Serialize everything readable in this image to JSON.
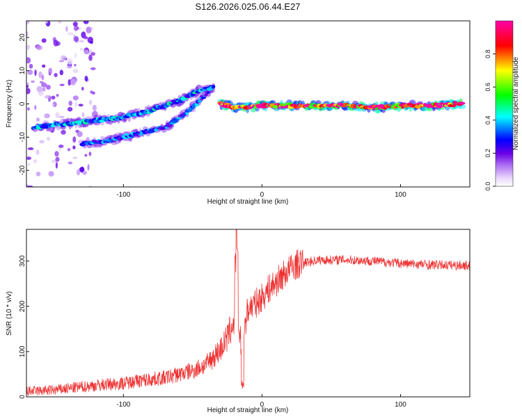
{
  "chart_data": [
    {
      "type": "heatmap",
      "title": "S126.2026.025.06.44.E27",
      "xlabel": "Height of straight line (km)",
      "ylabel": "Frequency (Hz)",
      "xlim": [
        -170,
        150
      ],
      "ylim": [
        -25,
        25
      ],
      "xticks": [
        -100,
        0,
        100
      ],
      "yticks": [
        -20,
        -10,
        0,
        10,
        20
      ],
      "colorbar": {
        "label": "Normalized spectral amplitude",
        "range": [
          0,
          1
        ],
        "ticks": [
          "0.0",
          "0.2",
          "0.4",
          "0.6",
          "0.8"
        ]
      },
      "color_stops": [
        "#ffffff",
        "#e9d7fb",
        "#a35cf2",
        "#6900e6",
        "#0000ff",
        "#00ffff",
        "#00ff00",
        "#ffff00",
        "#ff0000",
        "#ff00aa"
      ],
      "features": [
        {
          "name": "low-altitude-noise",
          "x_range": [
            -170,
            -120
          ],
          "y_range": [
            -25,
            25
          ],
          "amplitude": 0.15
        },
        {
          "name": "rising-branch-a",
          "x": [
            -165,
            -140,
            -120,
            -100,
            -80,
            -60,
            -45,
            -35
          ],
          "y": [
            -7,
            -6,
            -5,
            -4,
            -2,
            1,
            4,
            5
          ],
          "amplitude": 0.35
        },
        {
          "name": "rising-branch-b",
          "x": [
            -130,
            -110,
            -90,
            -70,
            -55,
            -45,
            -38
          ],
          "y": [
            -12,
            -11,
            -9,
            -7,
            -3,
            1,
            4
          ],
          "amplitude": 0.3
        },
        {
          "name": "high-altitude-line",
          "x": [
            -30,
            -20,
            -10,
            0,
            20,
            40,
            60,
            75,
            90,
            100,
            120,
            145
          ],
          "y": [
            0,
            -1,
            -1,
            -0.5,
            -0.5,
            -0.5,
            -0.5,
            -1,
            -1,
            -0.5,
            -0.5,
            0
          ],
          "amplitude": 0.85
        }
      ]
    },
    {
      "type": "line",
      "xlabel": "Height of straight line (km)",
      "ylabel": "SNR (10 * v/v)",
      "xlim": [
        -170,
        150
      ],
      "ylim": [
        0,
        370
      ],
      "xticks": [
        -100,
        0,
        100
      ],
      "yticks": [
        0,
        100,
        200,
        300
      ],
      "line_color": "#ee3333",
      "envelope": {
        "x": [
          -170,
          -150,
          -130,
          -110,
          -100,
          -90,
          -70,
          -50,
          -40,
          -30,
          -25,
          -20,
          -18,
          -15,
          -12,
          -10,
          -5,
          0,
          5,
          10,
          15,
          20,
          25,
          30,
          40,
          60,
          80,
          100,
          120,
          150
        ],
        "y": [
          12,
          15,
          22,
          28,
          30,
          35,
          42,
          58,
          72,
          105,
          130,
          170,
          190,
          115,
          165,
          195,
          205,
          220,
          238,
          252,
          268,
          282,
          292,
          296,
          302,
          303,
          300,
          295,
          292,
          290
        ]
      },
      "spike": {
        "x": -18.5,
        "y": 370
      },
      "dropout": {
        "x": -14,
        "y": 15
      },
      "noise_amplitude": 15
    }
  ]
}
